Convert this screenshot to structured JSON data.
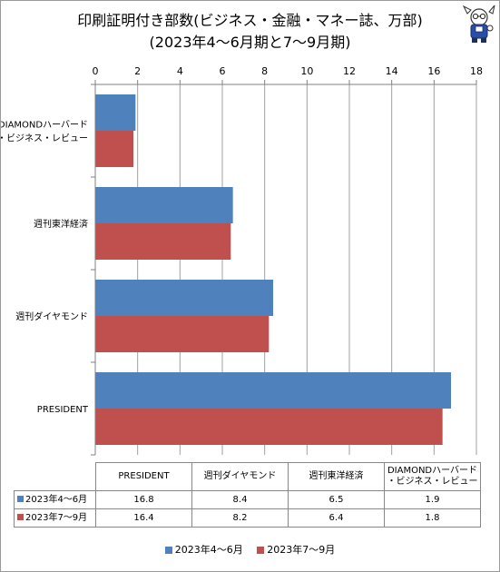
{
  "title_line1": "印刷証明付き部数(ビジネス・金融・マネー誌、万部)",
  "title_line2": "(2023年4～6月期と7～9月期)",
  "colors": {
    "s1": "#4f81bd",
    "s2": "#c0504d",
    "grid": "#a0a0a0",
    "axis": "#808080"
  },
  "chart_data": {
    "type": "bar",
    "orientation": "horizontal",
    "categories": [
      "DIAMONDハーバード・ビジネス・レビュー",
      "週刊東洋経済",
      "週刊ダイヤモンド",
      "PRESIDENT"
    ],
    "category_lines": [
      [
        "DIAMONDハーバード",
        "・ビジネス・レビュー"
      ],
      [
        "週刊東洋経済"
      ],
      [
        "週刊ダイヤモンド"
      ],
      [
        "PRESIDENT"
      ]
    ],
    "series": [
      {
        "name": "2023年4～6月",
        "values": [
          1.9,
          6.5,
          8.4,
          16.8
        ]
      },
      {
        "name": "2023年7～9月",
        "values": [
          1.8,
          6.4,
          8.2,
          16.4
        ]
      }
    ],
    "xlim": [
      0,
      18
    ],
    "ticks": [
      0,
      2,
      4,
      6,
      8,
      10,
      12,
      14,
      16,
      18
    ],
    "axis_position": "top",
    "grid": true,
    "legend": "bottom"
  },
  "table": {
    "columns": [
      "PRESIDENT",
      "週刊ダイヤモンド",
      "週刊東洋経済",
      "DIAMONDハーバード・ビジネス・レビュー"
    ],
    "column_lines": [
      [
        "PRESIDENT"
      ],
      [
        "週刊ダイヤモンド"
      ],
      [
        "週刊東洋経済"
      ],
      [
        "DIAMONDハーバード",
        "・ビジネス・レビュー"
      ]
    ],
    "rows": [
      {
        "label": "2023年4～6月",
        "values": [
          "16.8",
          "8.4",
          "6.5",
          "1.9"
        ]
      },
      {
        "label": "2023年7～9月",
        "values": [
          "16.4",
          "8.2",
          "6.4",
          "1.8"
        ]
      }
    ]
  },
  "legend": [
    "2023年4～6月",
    "2023年7～9月"
  ]
}
